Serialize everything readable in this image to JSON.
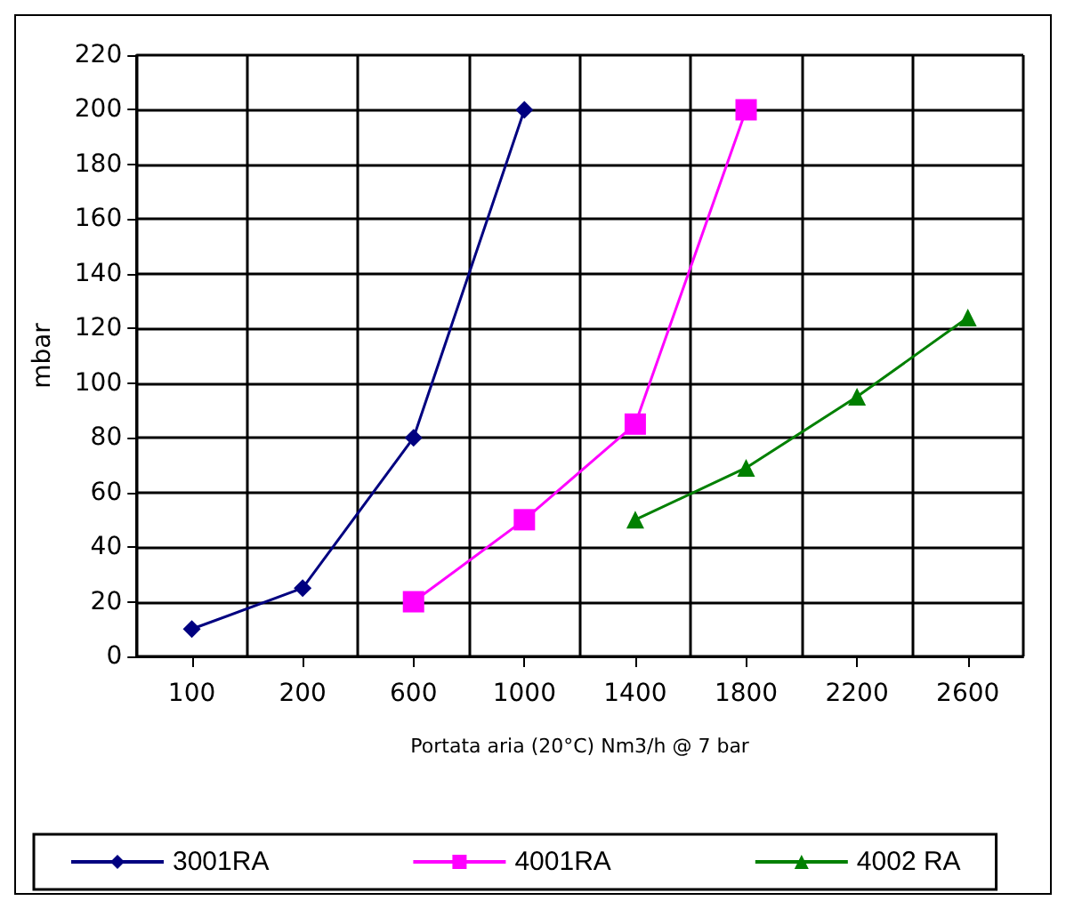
{
  "chart_data": {
    "type": "line",
    "xlabel": "Portata aria (20°C) Nm3/h @ 7 bar",
    "ylabel": "mbar",
    "categories": [
      "100",
      "200",
      "600",
      "1000",
      "1400",
      "1800",
      "2200",
      "2600"
    ],
    "series": [
      {
        "name": "3001RA",
        "color": "#000080",
        "marker": "diamond",
        "values": [
          10,
          25,
          80,
          200,
          null,
          null,
          null,
          null
        ]
      },
      {
        "name": "4001RA",
        "color": "#ff00ff",
        "marker": "square",
        "values": [
          null,
          null,
          20,
          50,
          85,
          200,
          null,
          null
        ]
      },
      {
        "name": "4002 RA",
        "color": "#008000",
        "marker": "triangle",
        "values": [
          null,
          null,
          null,
          null,
          50,
          69,
          95,
          124
        ]
      }
    ],
    "ylim": [
      0,
      220
    ],
    "yticks": [
      0,
      20,
      40,
      60,
      80,
      100,
      120,
      140,
      160,
      180,
      200,
      220
    ],
    "grid": true,
    "legend": "bottom",
    "line_style": "solid"
  }
}
